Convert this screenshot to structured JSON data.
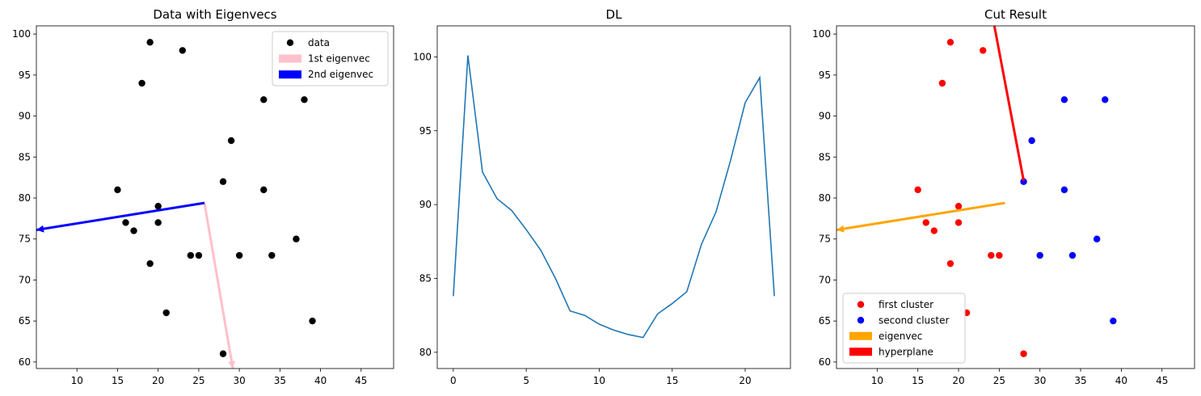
{
  "chart_data": [
    {
      "type": "scatter",
      "title": "Data with Eigenvecs",
      "xlabel": "",
      "ylabel": "",
      "xlim": [
        5,
        49
      ],
      "ylim": [
        59.2,
        101
      ],
      "xticks": [
        10,
        15,
        20,
        25,
        30,
        35,
        40,
        45
      ],
      "yticks": [
        60,
        65,
        70,
        75,
        80,
        85,
        90,
        95,
        100
      ],
      "legend_position": "top-right",
      "series": [
        {
          "name": "data",
          "kind": "points",
          "color": "#000000",
          "points": [
            [
              19,
              99
            ],
            [
              23,
              98
            ],
            [
              18,
              94
            ],
            [
              33,
              92
            ],
            [
              38,
              92
            ],
            [
              29,
              87
            ],
            [
              28,
              82
            ],
            [
              15,
              81
            ],
            [
              33,
              81
            ],
            [
              20,
              79
            ],
            [
              16,
              77
            ],
            [
              20,
              77
            ],
            [
              17,
              76
            ],
            [
              37,
              75
            ],
            [
              24,
              73
            ],
            [
              25,
              73
            ],
            [
              30,
              73
            ],
            [
              34,
              73
            ],
            [
              19,
              72
            ],
            [
              21,
              66
            ],
            [
              39,
              65
            ],
            [
              28,
              61
            ]
          ]
        },
        {
          "name": "1st eigenvec",
          "kind": "arrow",
          "color": "#ffc0cb",
          "from": [
            25.7,
            79.4
          ],
          "to": [
            29.2,
            59.2
          ]
        },
        {
          "name": "2nd eigenvec",
          "kind": "arrow",
          "color": "#0000ff",
          "from": [
            25.7,
            79.4
          ],
          "to": [
            5,
            76.1
          ]
        }
      ]
    },
    {
      "type": "line",
      "title": "DL",
      "xlabel": "",
      "ylabel": "",
      "xlim": [
        -1.1,
        23.1
      ],
      "ylim": [
        78.9,
        102.1
      ],
      "xticks": [
        0,
        5,
        10,
        15,
        20
      ],
      "yticks": [
        80,
        85,
        90,
        95,
        100
      ],
      "series": [
        {
          "name": "",
          "color": "#1f77b4",
          "x": [
            0,
            1,
            2,
            3,
            4,
            5,
            6,
            7,
            8,
            9,
            10,
            11,
            12,
            13,
            14,
            15,
            16,
            17,
            18,
            19,
            20,
            21,
            22
          ],
          "y": [
            83.8,
            100.1,
            92.2,
            90.4,
            89.6,
            88.3,
            86.9,
            85.0,
            82.8,
            82.5,
            81.9,
            81.5,
            81.2,
            81.0,
            82.6,
            83.3,
            84.1,
            87.3,
            89.5,
            93.0,
            96.9,
            98.6,
            83.8
          ]
        }
      ]
    },
    {
      "type": "scatter",
      "title": "Cut Result",
      "xlabel": "",
      "ylabel": "",
      "xlim": [
        5,
        49
      ],
      "ylim": [
        59.2,
        101
      ],
      "xticks": [
        10,
        15,
        20,
        25,
        30,
        35,
        40,
        45
      ],
      "yticks": [
        60,
        65,
        70,
        75,
        80,
        85,
        90,
        95,
        100
      ],
      "legend_position": "lower-left",
      "series": [
        {
          "name": "first cluster",
          "kind": "points",
          "color": "#ff0000",
          "points": [
            [
              19,
              99
            ],
            [
              23,
              98
            ],
            [
              18,
              94
            ],
            [
              15,
              81
            ],
            [
              20,
              79
            ],
            [
              16,
              77
            ],
            [
              20,
              77
            ],
            [
              17,
              76
            ],
            [
              24,
              73
            ],
            [
              25,
              73
            ],
            [
              19,
              72
            ],
            [
              21,
              66
            ],
            [
              28,
              61
            ]
          ]
        },
        {
          "name": "second cluster",
          "kind": "points",
          "color": "#0000ff",
          "points": [
            [
              33,
              92
            ],
            [
              38,
              92
            ],
            [
              29,
              87
            ],
            [
              28,
              82
            ],
            [
              33,
              81
            ],
            [
              37,
              75
            ],
            [
              30,
              73
            ],
            [
              34,
              73
            ],
            [
              39,
              65
            ]
          ]
        },
        {
          "name": "eigenvec",
          "kind": "arrow",
          "color": "#ffa500",
          "from": [
            25.7,
            79.4
          ],
          "to": [
            5,
            76.1
          ]
        },
        {
          "name": "hyperplane",
          "kind": "segment",
          "color": "#ff0000",
          "from": [
            28,
            82.1
          ],
          "to": [
            24.4,
            101
          ]
        }
      ]
    }
  ]
}
